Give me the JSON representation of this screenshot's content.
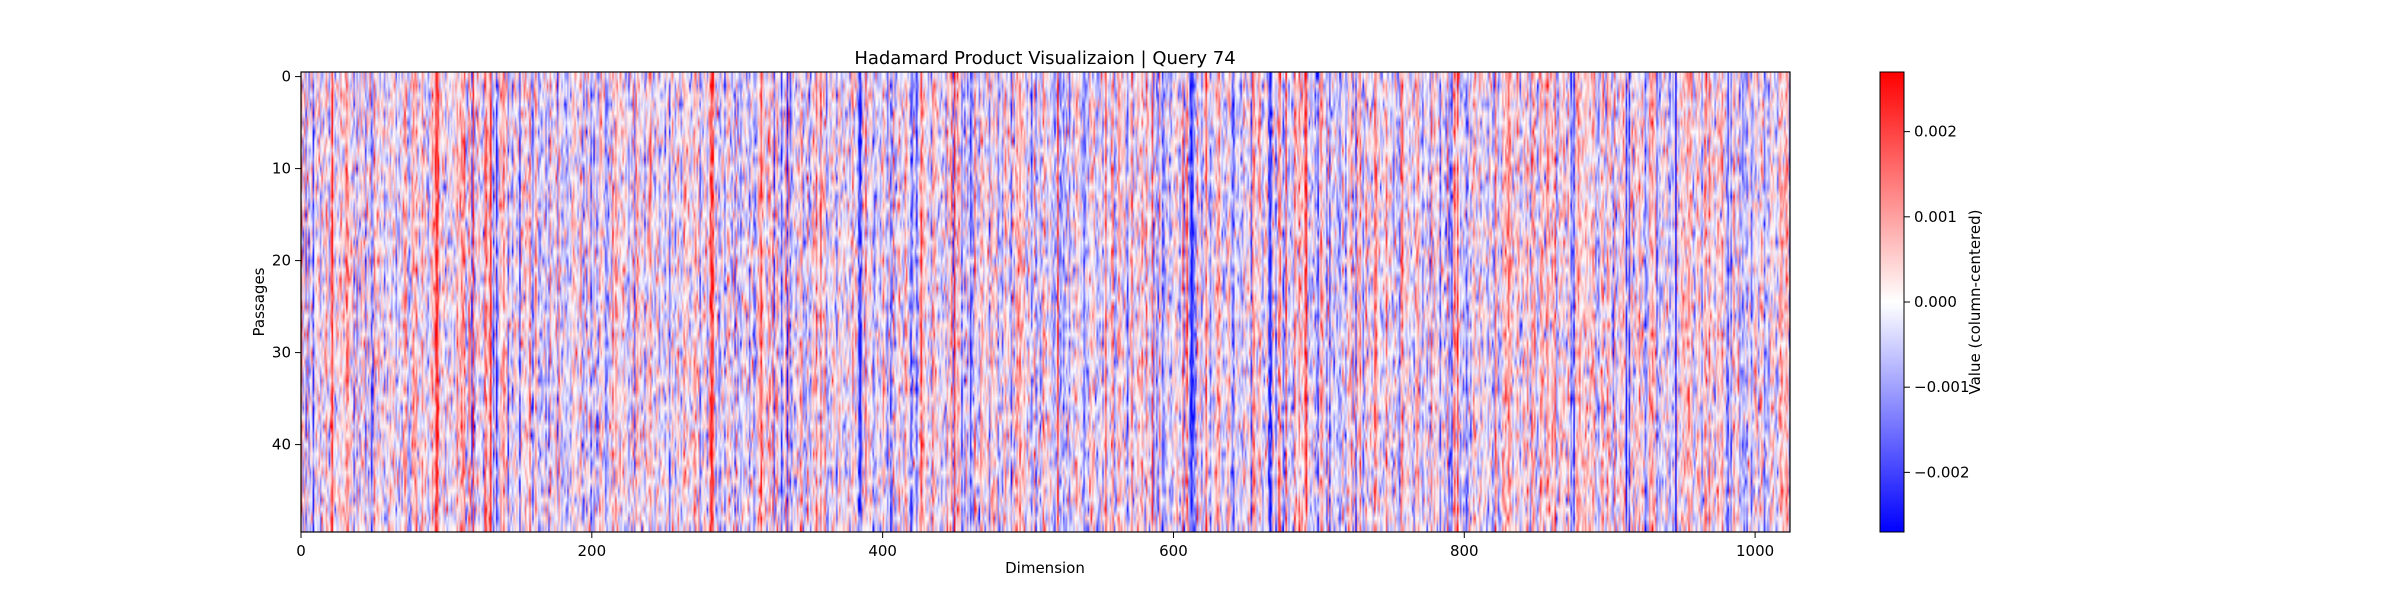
{
  "chart_data": {
    "type": "heatmap",
    "title": "Hadamard Product Visualizaion | Query 74",
    "xlabel": "Dimension",
    "ylabel": "Passages",
    "x_range": [
      0,
      1024
    ],
    "y_range": [
      0,
      50
    ],
    "x_ticks": [
      0,
      200,
      400,
      600,
      800,
      1000
    ],
    "x_tick_labels": [
      "0",
      "200",
      "400",
      "600",
      "800",
      "1000"
    ],
    "y_ticks": [
      0,
      10,
      20,
      30,
      40
    ],
    "y_tick_labels": [
      "0",
      "10",
      "20",
      "30",
      "40"
    ],
    "y_inverted": true,
    "n_rows": 50,
    "n_cols": 1024,
    "colormap": "bwr",
    "colormap_colors": {
      "low": "#0000ff",
      "mid": "#ffffff",
      "high": "#ff0000"
    },
    "value_range": [
      -0.0027,
      0.0027
    ],
    "colorbar": {
      "label": "Value (column-centered)",
      "ticks": [
        -0.002,
        -0.001,
        0.0,
        0.001,
        0.002
      ],
      "tick_labels": [
        "−0.002",
        "−0.001",
        "0.000",
        "0.001",
        "0.002"
      ]
    },
    "grid": false,
    "notable_columns": [
      {
        "dimension": 384,
        "tendency": "strong blue"
      },
      {
        "dimension": 282,
        "tendency": "strong red"
      },
      {
        "dimension": 93,
        "tendency": "strong red"
      },
      {
        "dimension": 612,
        "tendency": "strong blue"
      },
      {
        "dimension": 666,
        "tendency": "strong blue"
      }
    ]
  }
}
